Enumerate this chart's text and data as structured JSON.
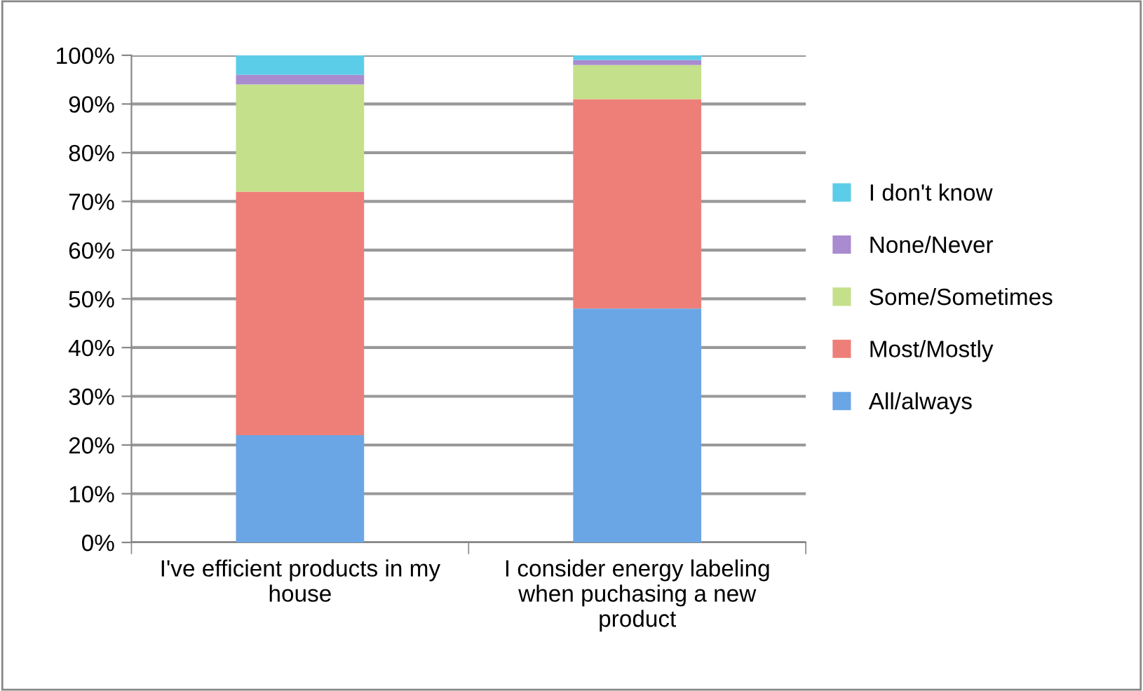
{
  "chart_data": {
    "type": "bar",
    "stacked": true,
    "categories": [
      "I've efficient products in my house",
      "I consider energy labeling when puchasing a new product"
    ],
    "series": [
      {
        "name": "All/always",
        "color": "#6aa6e6",
        "values": [
          22,
          48
        ]
      },
      {
        "name": "Most/Mostly",
        "color": "#ee7f78",
        "values": [
          50,
          43
        ]
      },
      {
        "name": "Some/Sometimes",
        "color": "#c4e08a",
        "values": [
          22,
          7
        ]
      },
      {
        "name": "None/Never",
        "color": "#a98bd0",
        "values": [
          2,
          1
        ]
      },
      {
        "name": "I don't know",
        "color": "#5ccde8",
        "values": [
          4,
          1
        ]
      }
    ],
    "ylim": [
      0,
      100
    ],
    "yticks": [
      {
        "value": 0,
        "label": "0%"
      },
      {
        "value": 10,
        "label": "10%"
      },
      {
        "value": 20,
        "label": "20%"
      },
      {
        "value": 30,
        "label": "30%"
      },
      {
        "value": 40,
        "label": "40%"
      },
      {
        "value": 50,
        "label": "50%"
      },
      {
        "value": 60,
        "label": "60%"
      },
      {
        "value": 70,
        "label": "70%"
      },
      {
        "value": 80,
        "label": "80%"
      },
      {
        "value": 90,
        "label": "90%"
      },
      {
        "value": 100,
        "label": "100%"
      }
    ],
    "grid": "y",
    "legend": "right"
  }
}
